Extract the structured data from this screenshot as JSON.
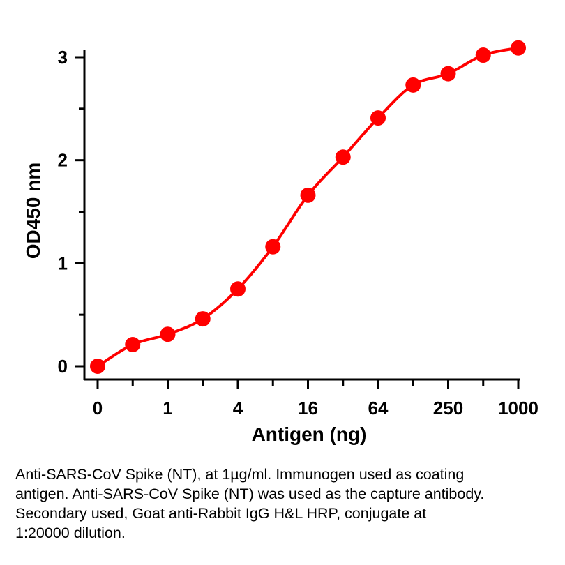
{
  "chart_data": {
    "type": "line",
    "title": "",
    "xlabel": "Antigen (ng)",
    "ylabel": "OD450 nm",
    "ylim": [
      0,
      3
    ],
    "y_ticks": [
      "0",
      "1",
      "2",
      "3"
    ],
    "x_tick_labels": [
      "0",
      "1",
      "4",
      "16",
      "64",
      "250",
      "1000"
    ],
    "grid": false,
    "legend": "none",
    "color": "#ff0000",
    "series": [
      {
        "values": [
          0.0,
          0.21,
          0.31,
          0.46,
          0.75,
          1.16,
          1.66,
          2.03,
          2.41,
          2.73,
          2.84,
          3.02,
          3.09
        ]
      }
    ]
  },
  "caption": {
    "lines": [
      "Anti-SARS-CoV Spike (NT), at 1µg/ml. Immunogen used as coating",
      "antigen. Anti-SARS-CoV Spike (NT) was used as the capture antibody.",
      "Secondary used, Goat anti-Rabbit IgG H&L HRP, conjugate at",
      "1:20000 dilution."
    ]
  }
}
